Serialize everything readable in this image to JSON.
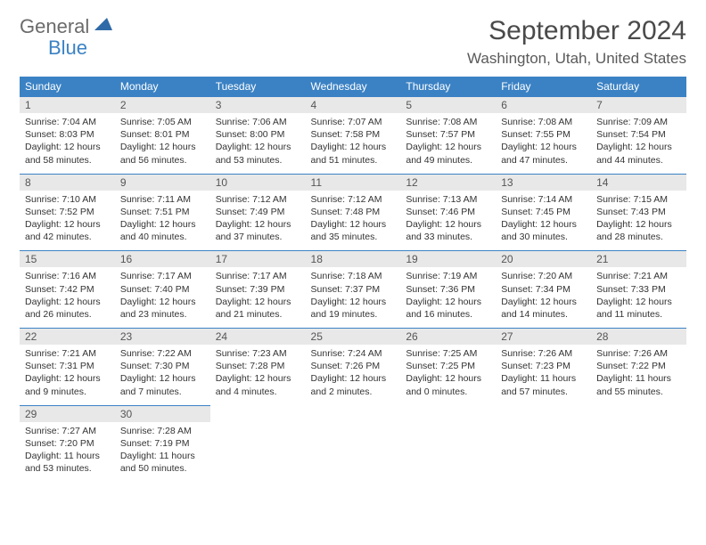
{
  "logo": {
    "general": "General",
    "blue": "Blue"
  },
  "title": "September 2024",
  "location": "Washington, Utah, United States",
  "colors": {
    "header_bg": "#3b82c4",
    "header_text": "#ffffff",
    "daynum_bg": "#e8e8e8",
    "border": "#3b82c4",
    "title_color": "#4a4a4a",
    "body_text": "#333333"
  },
  "weekdays": [
    "Sunday",
    "Monday",
    "Tuesday",
    "Wednesday",
    "Thursday",
    "Friday",
    "Saturday"
  ],
  "weeks": [
    [
      {
        "num": "1",
        "sr": "Sunrise: 7:04 AM",
        "ss": "Sunset: 8:03 PM",
        "dl": "Daylight: 12 hours and 58 minutes."
      },
      {
        "num": "2",
        "sr": "Sunrise: 7:05 AM",
        "ss": "Sunset: 8:01 PM",
        "dl": "Daylight: 12 hours and 56 minutes."
      },
      {
        "num": "3",
        "sr": "Sunrise: 7:06 AM",
        "ss": "Sunset: 8:00 PM",
        "dl": "Daylight: 12 hours and 53 minutes."
      },
      {
        "num": "4",
        "sr": "Sunrise: 7:07 AM",
        "ss": "Sunset: 7:58 PM",
        "dl": "Daylight: 12 hours and 51 minutes."
      },
      {
        "num": "5",
        "sr": "Sunrise: 7:08 AM",
        "ss": "Sunset: 7:57 PM",
        "dl": "Daylight: 12 hours and 49 minutes."
      },
      {
        "num": "6",
        "sr": "Sunrise: 7:08 AM",
        "ss": "Sunset: 7:55 PM",
        "dl": "Daylight: 12 hours and 47 minutes."
      },
      {
        "num": "7",
        "sr": "Sunrise: 7:09 AM",
        "ss": "Sunset: 7:54 PM",
        "dl": "Daylight: 12 hours and 44 minutes."
      }
    ],
    [
      {
        "num": "8",
        "sr": "Sunrise: 7:10 AM",
        "ss": "Sunset: 7:52 PM",
        "dl": "Daylight: 12 hours and 42 minutes."
      },
      {
        "num": "9",
        "sr": "Sunrise: 7:11 AM",
        "ss": "Sunset: 7:51 PM",
        "dl": "Daylight: 12 hours and 40 minutes."
      },
      {
        "num": "10",
        "sr": "Sunrise: 7:12 AM",
        "ss": "Sunset: 7:49 PM",
        "dl": "Daylight: 12 hours and 37 minutes."
      },
      {
        "num": "11",
        "sr": "Sunrise: 7:12 AM",
        "ss": "Sunset: 7:48 PM",
        "dl": "Daylight: 12 hours and 35 minutes."
      },
      {
        "num": "12",
        "sr": "Sunrise: 7:13 AM",
        "ss": "Sunset: 7:46 PM",
        "dl": "Daylight: 12 hours and 33 minutes."
      },
      {
        "num": "13",
        "sr": "Sunrise: 7:14 AM",
        "ss": "Sunset: 7:45 PM",
        "dl": "Daylight: 12 hours and 30 minutes."
      },
      {
        "num": "14",
        "sr": "Sunrise: 7:15 AM",
        "ss": "Sunset: 7:43 PM",
        "dl": "Daylight: 12 hours and 28 minutes."
      }
    ],
    [
      {
        "num": "15",
        "sr": "Sunrise: 7:16 AM",
        "ss": "Sunset: 7:42 PM",
        "dl": "Daylight: 12 hours and 26 minutes."
      },
      {
        "num": "16",
        "sr": "Sunrise: 7:17 AM",
        "ss": "Sunset: 7:40 PM",
        "dl": "Daylight: 12 hours and 23 minutes."
      },
      {
        "num": "17",
        "sr": "Sunrise: 7:17 AM",
        "ss": "Sunset: 7:39 PM",
        "dl": "Daylight: 12 hours and 21 minutes."
      },
      {
        "num": "18",
        "sr": "Sunrise: 7:18 AM",
        "ss": "Sunset: 7:37 PM",
        "dl": "Daylight: 12 hours and 19 minutes."
      },
      {
        "num": "19",
        "sr": "Sunrise: 7:19 AM",
        "ss": "Sunset: 7:36 PM",
        "dl": "Daylight: 12 hours and 16 minutes."
      },
      {
        "num": "20",
        "sr": "Sunrise: 7:20 AM",
        "ss": "Sunset: 7:34 PM",
        "dl": "Daylight: 12 hours and 14 minutes."
      },
      {
        "num": "21",
        "sr": "Sunrise: 7:21 AM",
        "ss": "Sunset: 7:33 PM",
        "dl": "Daylight: 12 hours and 11 minutes."
      }
    ],
    [
      {
        "num": "22",
        "sr": "Sunrise: 7:21 AM",
        "ss": "Sunset: 7:31 PM",
        "dl": "Daylight: 12 hours and 9 minutes."
      },
      {
        "num": "23",
        "sr": "Sunrise: 7:22 AM",
        "ss": "Sunset: 7:30 PM",
        "dl": "Daylight: 12 hours and 7 minutes."
      },
      {
        "num": "24",
        "sr": "Sunrise: 7:23 AM",
        "ss": "Sunset: 7:28 PM",
        "dl": "Daylight: 12 hours and 4 minutes."
      },
      {
        "num": "25",
        "sr": "Sunrise: 7:24 AM",
        "ss": "Sunset: 7:26 PM",
        "dl": "Daylight: 12 hours and 2 minutes."
      },
      {
        "num": "26",
        "sr": "Sunrise: 7:25 AM",
        "ss": "Sunset: 7:25 PM",
        "dl": "Daylight: 12 hours and 0 minutes."
      },
      {
        "num": "27",
        "sr": "Sunrise: 7:26 AM",
        "ss": "Sunset: 7:23 PM",
        "dl": "Daylight: 11 hours and 57 minutes."
      },
      {
        "num": "28",
        "sr": "Sunrise: 7:26 AM",
        "ss": "Sunset: 7:22 PM",
        "dl": "Daylight: 11 hours and 55 minutes."
      }
    ],
    [
      {
        "num": "29",
        "sr": "Sunrise: 7:27 AM",
        "ss": "Sunset: 7:20 PM",
        "dl": "Daylight: 11 hours and 53 minutes."
      },
      {
        "num": "30",
        "sr": "Sunrise: 7:28 AM",
        "ss": "Sunset: 7:19 PM",
        "dl": "Daylight: 11 hours and 50 minutes."
      },
      {
        "empty": true
      },
      {
        "empty": true
      },
      {
        "empty": true
      },
      {
        "empty": true
      },
      {
        "empty": true
      }
    ]
  ]
}
